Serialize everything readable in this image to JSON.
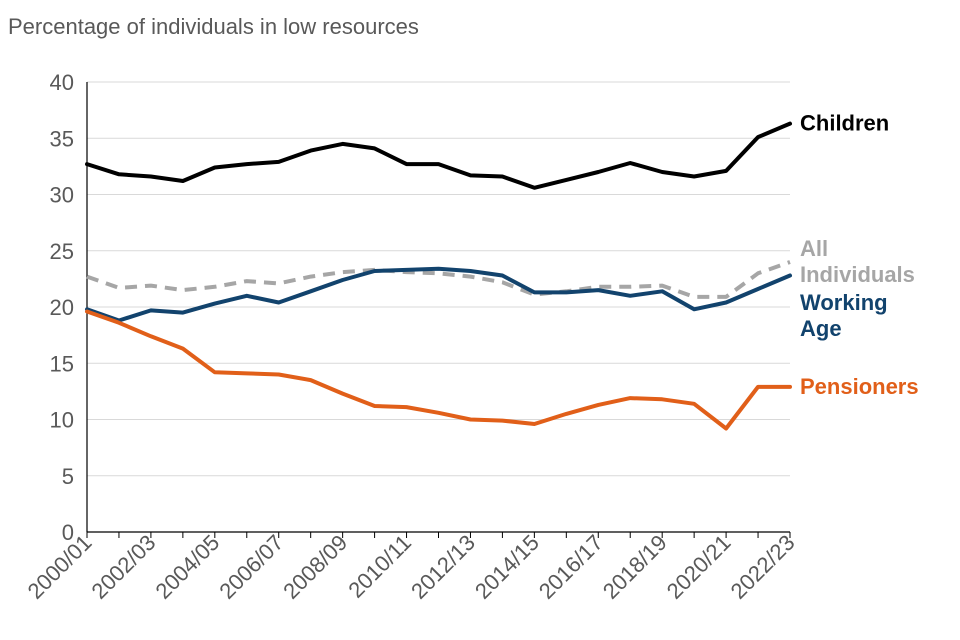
{
  "chart_data": {
    "type": "line",
    "title": "Percentage of individuals in low resources",
    "xlabel": "",
    "ylabel": "",
    "ylim": [
      0,
      40
    ],
    "yticks": [
      0,
      5,
      10,
      15,
      20,
      25,
      30,
      35,
      40
    ],
    "grid": true,
    "categories": [
      "2000/01",
      "2001/02",
      "2002/03",
      "2003/04",
      "2004/05",
      "2005/06",
      "2006/07",
      "2007/08",
      "2008/09",
      "2009/10",
      "2010/11",
      "2011/12",
      "2012/13",
      "2013/14",
      "2014/15",
      "2015/16",
      "2016/17",
      "2017/18",
      "2018/19",
      "2019/20",
      "2020/21",
      "2021/22",
      "2022/23"
    ],
    "tick_labels": [
      "2000/01",
      "2002/03",
      "2004/05",
      "2006/07",
      "2008/09",
      "2010/11",
      "2012/13",
      "2014/15",
      "2016/17",
      "2018/19",
      "2020/21",
      "2022/23"
    ],
    "series": [
      {
        "name": "Children",
        "color": "#000000",
        "dash": false,
        "label_lines": [
          "Children"
        ],
        "values": [
          32.7,
          31.8,
          31.6,
          31.2,
          32.4,
          32.7,
          32.9,
          33.9,
          34.5,
          34.1,
          32.7,
          32.7,
          31.7,
          31.6,
          30.6,
          31.3,
          32.0,
          32.8,
          32.0,
          31.6,
          32.1,
          35.1,
          36.3
        ]
      },
      {
        "name": "All Individuals",
        "color": "#a6a6a6",
        "dash": true,
        "label_lines": [
          "All",
          "Individuals"
        ],
        "values": [
          22.7,
          21.7,
          21.9,
          21.5,
          21.8,
          22.3,
          22.1,
          22.7,
          23.1,
          23.3,
          23.1,
          23.0,
          22.7,
          22.2,
          21.1,
          21.4,
          21.8,
          21.8,
          21.9,
          20.9,
          20.9,
          23.0,
          24.0
        ]
      },
      {
        "name": "Working Age",
        "color": "#12436d",
        "dash": false,
        "label_lines": [
          "Working",
          "Age"
        ],
        "values": [
          19.8,
          18.8,
          19.7,
          19.5,
          20.3,
          21.0,
          20.4,
          21.4,
          22.4,
          23.2,
          23.3,
          23.4,
          23.2,
          22.8,
          21.3,
          21.3,
          21.5,
          21.0,
          21.4,
          19.8,
          20.4,
          21.6,
          22.8
        ]
      },
      {
        "name": "Pensioners",
        "color": "#e15f19",
        "dash": false,
        "label_lines": [
          "Pensioners"
        ],
        "values": [
          19.6,
          18.6,
          17.4,
          16.3,
          14.2,
          14.1,
          14.0,
          13.5,
          12.3,
          11.2,
          11.1,
          10.6,
          10.0,
          9.9,
          9.6,
          10.5,
          11.3,
          11.9,
          11.8,
          11.4,
          9.2,
          12.9,
          12.9
        ]
      }
    ]
  }
}
